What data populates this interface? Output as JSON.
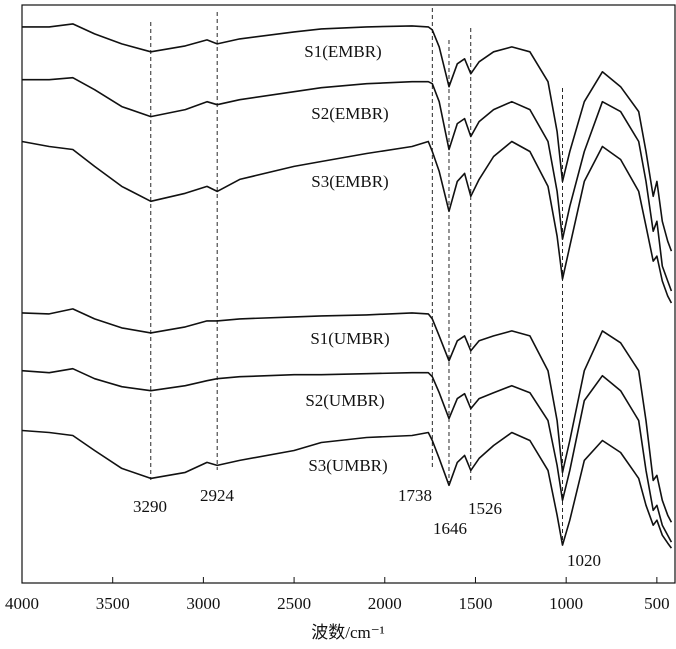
{
  "chart_data": {
    "type": "line",
    "x_label": "波数/cm⁻¹",
    "xlim": [
      4000,
      400
    ],
    "xticks": [
      4000,
      3500,
      3000,
      2500,
      2000,
      1500,
      1000,
      500
    ],
    "ylim": [
      0,
      580
    ],
    "x": [
      4000,
      3850,
      3720,
      3600,
      3450,
      3290,
      3100,
      2980,
      2924,
      2800,
      2500,
      2350,
      2100,
      1850,
      1760,
      1738,
      1700,
      1646,
      1600,
      1560,
      1526,
      1480,
      1400,
      1300,
      1200,
      1100,
      1050,
      1020,
      980,
      900,
      800,
      700,
      600,
      560,
      520,
      500,
      470,
      440,
      420
    ],
    "series": [
      {
        "name": "S1(EMBR)",
        "color": "#111111",
        "values": [
          558,
          558,
          561,
          551,
          541,
          533,
          539,
          545,
          541,
          546,
          553,
          556,
          558,
          559,
          558,
          555,
          538,
          498,
          521,
          526,
          511,
          523,
          533,
          538,
          533,
          503,
          453,
          403,
          433,
          483,
          513,
          498,
          473,
          433,
          388,
          403,
          363,
          343,
          333
        ]
      },
      {
        "name": "S2(EMBR)",
        "color": "#111111",
        "values": [
          505,
          505,
          507,
          495,
          478,
          468,
          475,
          483,
          480,
          485,
          493,
          497,
          501,
          503,
          503,
          501,
          483,
          435,
          461,
          466,
          448,
          463,
          475,
          483,
          475,
          443,
          393,
          345,
          378,
          433,
          483,
          473,
          443,
          403,
          353,
          363,
          318,
          303,
          293
        ]
      },
      {
        "name": "S3(EMBR)",
        "color": "#111111",
        "values": [
          443,
          438,
          435,
          418,
          398,
          383,
          391,
          398,
          393,
          405,
          418,
          423,
          431,
          438,
          443,
          433,
          413,
          373,
          403,
          411,
          388,
          405,
          428,
          443,
          433,
          398,
          348,
          305,
          338,
          403,
          438,
          425,
          393,
          358,
          323,
          328,
          303,
          288,
          281
        ]
      },
      {
        "name": "S1(UMBR)",
        "color": "#111111",
        "values": [
          271,
          270,
          275,
          265,
          256,
          251,
          257,
          263,
          263,
          265,
          267,
          268,
          269,
          271,
          270,
          265,
          248,
          223,
          243,
          248,
          233,
          243,
          248,
          253,
          248,
          213,
          163,
          111,
          143,
          213,
          253,
          241,
          213,
          163,
          103,
          108,
          83,
          68,
          61
        ]
      },
      {
        "name": "S2(UMBR)",
        "color": "#111111",
        "values": [
          213,
          211,
          215,
          205,
          197,
          193,
          198,
          203,
          205,
          207,
          209,
          209,
          210,
          211,
          211,
          207,
          191,
          165,
          185,
          190,
          175,
          185,
          191,
          198,
          191,
          163,
          118,
          83,
          113,
          183,
          208,
          193,
          163,
          113,
          73,
          78,
          58,
          48,
          41
        ]
      },
      {
        "name": "S3(UMBR)",
        "color": "#111111",
        "values": [
          153,
          151,
          148,
          133,
          115,
          105,
          111,
          121,
          118,
          123,
          133,
          141,
          146,
          148,
          151,
          143,
          125,
          98,
          121,
          128,
          113,
          125,
          138,
          151,
          143,
          113,
          68,
          38,
          63,
          123,
          143,
          131,
          105,
          78,
          58,
          63,
          48,
          40,
          35
        ]
      }
    ],
    "annotations": [
      {
        "x": 3290,
        "label": "3290"
      },
      {
        "x": 2924,
        "label": "2924"
      },
      {
        "x": 1738,
        "label": "1738"
      },
      {
        "x": 1646,
        "label": "1646"
      },
      {
        "x": 1526,
        "label": "1526"
      },
      {
        "x": 1020,
        "label": "1020"
      }
    ]
  }
}
